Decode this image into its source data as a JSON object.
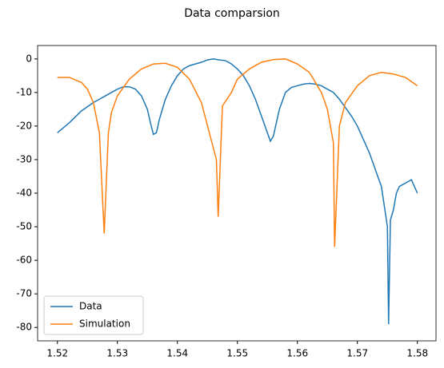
{
  "chart_data": {
    "type": "line",
    "title": "Data comparsion",
    "xlim": [
      1.5167,
      1.5831
    ],
    "xticks": [
      1.52,
      1.53,
      1.54,
      1.55,
      1.56,
      1.57,
      1.58
    ],
    "ylim": [
      -84,
      4
    ],
    "yticks": [
      0,
      -10,
      -20,
      -30,
      -40,
      -50,
      -60,
      -70,
      -80
    ],
    "legend": "lower left",
    "series": [
      {
        "name": "Data",
        "color": "#1f77b4",
        "x": [
          1.52,
          1.522,
          1.524,
          1.526,
          1.528,
          1.53,
          1.531,
          1.532,
          1.533,
          1.534,
          1.535,
          1.5355,
          1.536,
          1.5365,
          1.537,
          1.538,
          1.539,
          1.54,
          1.541,
          1.542,
          1.543,
          1.544,
          1.545,
          1.546,
          1.547,
          1.548,
          1.549,
          1.55,
          1.551,
          1.552,
          1.553,
          1.554,
          1.5555,
          1.556,
          1.557,
          1.558,
          1.559,
          1.56,
          1.561,
          1.562,
          1.563,
          1.564,
          1.565,
          1.566,
          1.567,
          1.568,
          1.569,
          1.57,
          1.571,
          1.572,
          1.573,
          1.574,
          1.5745,
          1.575,
          1.5752,
          1.5755,
          1.576,
          1.5765,
          1.577,
          1.578,
          1.579,
          1.58
        ],
        "values": [
          -22,
          -19,
          -15.5,
          -13,
          -11,
          -9,
          -8.3,
          -8.3,
          -9,
          -11,
          -15,
          -19,
          -22.5,
          -22,
          -18,
          -12,
          -8,
          -5,
          -3,
          -2,
          -1.5,
          -1,
          -0.3,
          0,
          -0.3,
          -0.5,
          -1.5,
          -3,
          -5,
          -8,
          -12,
          -17,
          -24.5,
          -23,
          -15,
          -10,
          -8.5,
          -8,
          -7.5,
          -7.3,
          -7.5,
          -8,
          -9,
          -10,
          -12,
          -14.5,
          -17,
          -20,
          -24,
          -28,
          -33,
          -38,
          -44,
          -50,
          -79,
          -48,
          -45,
          -40,
          -38,
          -37,
          -36,
          -40
        ]
      },
      {
        "name": "Simulation",
        "color": "#ff7f0e",
        "x": [
          1.52,
          1.522,
          1.524,
          1.525,
          1.526,
          1.527,
          1.5278,
          1.5285,
          1.529,
          1.53,
          1.532,
          1.534,
          1.536,
          1.538,
          1.54,
          1.542,
          1.544,
          1.5465,
          1.5468,
          1.5475,
          1.549,
          1.55,
          1.552,
          1.554,
          1.556,
          1.558,
          1.56,
          1.562,
          1.564,
          1.565,
          1.566,
          1.5662,
          1.567,
          1.568,
          1.57,
          1.572,
          1.574,
          1.576,
          1.578,
          1.58
        ],
        "values": [
          -5.5,
          -5.5,
          -7,
          -9,
          -13,
          -22,
          -52,
          -22,
          -16,
          -11,
          -6,
          -3,
          -1.5,
          -1.3,
          -2.5,
          -6,
          -13,
          -30,
          -47,
          -14,
          -10,
          -6,
          -3,
          -1,
          -0.2,
          0,
          -1.5,
          -4,
          -10,
          -15,
          -25,
          -56,
          -20,
          -13,
          -8,
          -5,
          -4,
          -4.5,
          -5.5,
          -8
        ]
      }
    ]
  }
}
